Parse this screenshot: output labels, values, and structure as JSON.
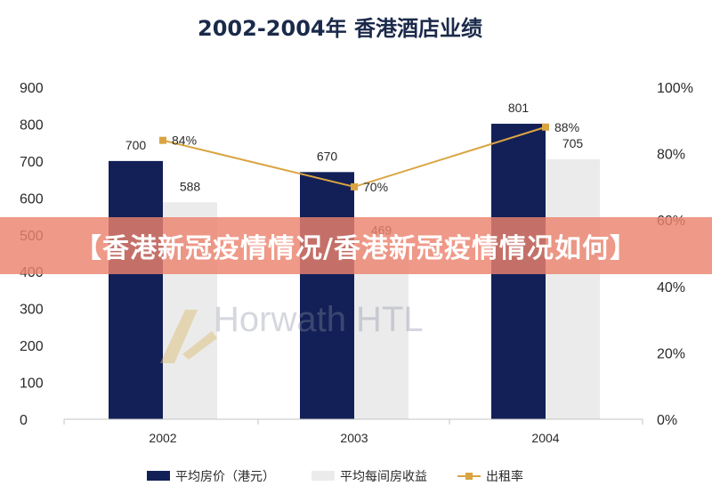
{
  "colors": {
    "bar_rate": "#132057",
    "bar_revpar": "#ebebeb",
    "line": "#d9a441",
    "text": "#2a2a2a",
    "title": "#1b2a4a",
    "banner_bg": "#ec826e",
    "banner_text": "#ffffff"
  },
  "watermark": {
    "text": "Horwath HTL"
  },
  "banner": {
    "text": "【香港新冠疫情情况/香港新冠疫情情况如何】"
  },
  "chart_data": {
    "type": "bar",
    "title": "2002-2004年 香港酒店业绩",
    "categories": [
      "2002",
      "2003",
      "2004"
    ],
    "series": [
      {
        "name": "平均房价（港元）",
        "type": "bar",
        "axis": "left",
        "values": [
          700,
          670,
          801
        ],
        "labels": [
          "700",
          "670",
          "801"
        ]
      },
      {
        "name": "平均每间房收益",
        "type": "bar",
        "axis": "left",
        "values": [
          588,
          469,
          705
        ],
        "labels": [
          "588",
          "469",
          "705"
        ]
      },
      {
        "name": "出租率",
        "type": "line",
        "axis": "right",
        "values": [
          84,
          70,
          88
        ],
        "labels": [
          "84%",
          "70%",
          "88%"
        ]
      }
    ],
    "y_left": {
      "min": 0,
      "max": 900,
      "ticks": [
        "0",
        "100",
        "200",
        "300",
        "400",
        "500",
        "600",
        "700",
        "800",
        "900"
      ]
    },
    "y_right": {
      "min": 0,
      "max": 100,
      "ticks": [
        "0%",
        "20%",
        "40%",
        "60%",
        "80%",
        "100%"
      ]
    },
    "grid": false,
    "legend_position": "bottom"
  }
}
